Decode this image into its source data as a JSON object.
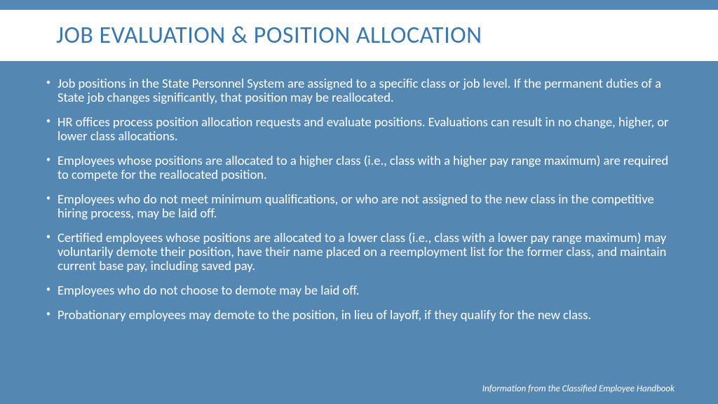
{
  "colors": {
    "slide_bg": "#5587b3",
    "title_bg": "#ffffff",
    "title_text": "#3a77ad",
    "body_text": "#ffffff",
    "bullet_color": "#ffffff",
    "footer_text": "#ffffff"
  },
  "typography": {
    "title_fontsize": 34,
    "body_fontsize": 18.5,
    "footer_fontsize": 13
  },
  "title": "JOB EVALUATION & POSITION ALLOCATION",
  "bullets": [
    "Job positions in the State Personnel System are assigned to a specific class or job level. If the permanent duties of a State job changes significantly, that position may be reallocated.",
    "HR offices process position allocation requests and evaluate positions. Evaluations can result in no change, higher, or lower class allocations.",
    "Employees whose positions are allocated to a higher class (i.e., class with a higher pay range maximum) are required to compete for the reallocated position.",
    "Employees who do not meet minimum qualifications, or who are not assigned to the new class in the competitive hiring process, may be laid off.",
    "Certified employees whose positions are allocated to a lower class (i.e., class with a lower pay range maximum) may voluntarily demote their position, have their name placed on a reemployment list for the former class, and maintain current base pay, including saved pay.",
    "Employees who do not choose to demote may be laid off.",
    "Probationary employees may demote to the position, in lieu of layoff, if they qualify for the new class."
  ],
  "footer": "Information from the Classified Employee Handbook"
}
